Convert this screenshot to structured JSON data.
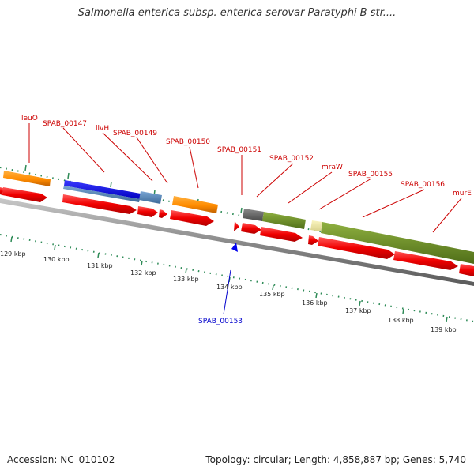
{
  "title": "Salmonella enterica subsp. enterica serovar Paratyphi B str....",
  "footer": {
    "accession": "Accession: NC_010102",
    "topology": "Topology: circular; Length: 4,858,887 bp; Genes: 5,740"
  },
  "colors": {
    "gene_label": "#cc0000",
    "gene_label_below": "#0000cc",
    "cds": "#ff0000",
    "orange_feature": "#ff8c00",
    "blue_feature": "#0000ee",
    "steelblue_feature": "#4a7fb5",
    "gray_feature": "#666666",
    "olive_feature": "#6b8e23",
    "khaki_feature": "#eee8aa",
    "backbone": "#888888",
    "ticks": "#2e8b57"
  },
  "gene_labels": [
    {
      "text": "leuO"
    },
    {
      "text": "SPAB_00147"
    },
    {
      "text": "ilvH"
    },
    {
      "text": "SPAB_00149"
    },
    {
      "text": "SPAB_00150"
    },
    {
      "text": "SPAB_00151"
    },
    {
      "text": "SPAB_00152"
    },
    {
      "text": "mraW"
    },
    {
      "text": "SPAB_00155"
    },
    {
      "text": "SPAB_00156"
    },
    {
      "text": "murE"
    }
  ],
  "gene_label_below": {
    "text": "SPAB_00153"
  },
  "kbp_labels": [
    "129 kbp",
    "130 kbp",
    "131 kbp",
    "132 kbp",
    "133 kbp",
    "134 kbp",
    "135 kbp",
    "136 kbp",
    "137 kbp",
    "138 kbp",
    "139 kbp"
  ]
}
